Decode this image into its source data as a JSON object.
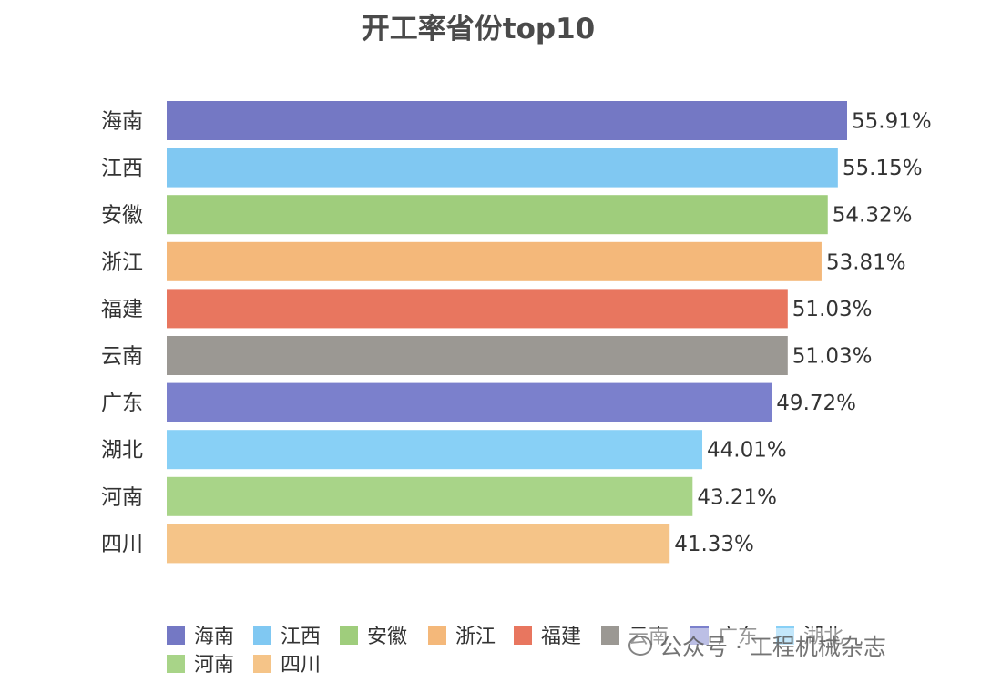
{
  "chart_data": {
    "type": "bar",
    "orientation": "horizontal",
    "title": "开工率省份top10",
    "categories": [
      "海南",
      "江西",
      "安徽",
      "浙江",
      "福建",
      "云南",
      "广东",
      "湖北",
      "河南",
      "四川"
    ],
    "values": [
      55.91,
      55.15,
      54.32,
      53.81,
      51.03,
      51.03,
      49.72,
      44.01,
      43.21,
      41.33
    ],
    "value_labels": [
      "55.91%",
      "55.15%",
      "54.32%",
      "53.81%",
      "51.03%",
      "51.03%",
      "49.72%",
      "44.01%",
      "43.21%",
      "41.33%"
    ],
    "colors": [
      "#7478c4",
      "#80c8f2",
      "#9fcd7c",
      "#f4b87a",
      "#e8765f",
      "#9b9893",
      "#7b80cc",
      "#88d0f6",
      "#a8d488",
      "#f5c488"
    ],
    "xlim": [
      0,
      55.91
    ],
    "grid": false,
    "legend_position": "bottom",
    "legend": [
      {
        "label": "海南",
        "color": "#7478c4"
      },
      {
        "label": "江西",
        "color": "#80c8f2"
      },
      {
        "label": "安徽",
        "color": "#9fcd7c"
      },
      {
        "label": "浙江",
        "color": "#f4b87a"
      },
      {
        "label": "福建",
        "color": "#e8765f"
      },
      {
        "label": "云南",
        "color": "#9b9893"
      },
      {
        "label": "广东",
        "color": "#7b80cc"
      },
      {
        "label": "湖北",
        "color": "#88d0f6"
      },
      {
        "label": "河南",
        "color": "#a8d488"
      },
      {
        "label": "四川",
        "color": "#f5c488"
      }
    ]
  },
  "watermark": {
    "text": "公众号 · 工程机械杂志",
    "icon": "wechat-icon"
  }
}
